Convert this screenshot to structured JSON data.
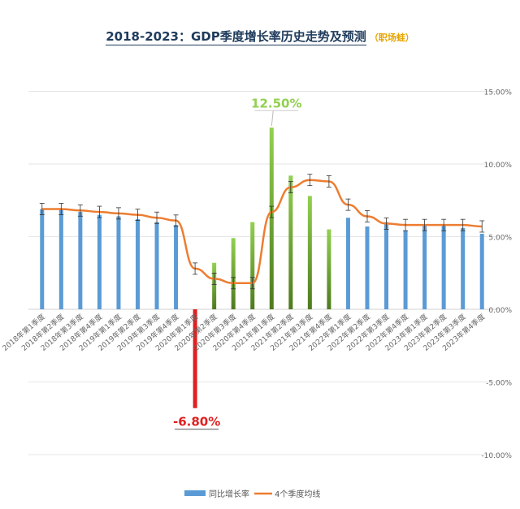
{
  "title": "2018-2023：GDP季度增长率历史走势及预测",
  "subtitle": "（职场蛙）",
  "colors": {
    "bar_blue": "#5b9bd5",
    "line_orange": "#ed7d31",
    "green_light": "#92d050",
    "green_dark": "#4e7a1e",
    "red": "#e02020",
    "axis_text": "#666666",
    "grid": "#e6e6e6",
    "title": "#1f3b5c",
    "subtitle": "#e5a400"
  },
  "chart_data": {
    "type": "bar",
    "categories": [
      "2018年第1季度",
      "2018年第2季度",
      "2018年第3季度",
      "2018年第4季度",
      "2019年第1季度",
      "2019年第2季度",
      "2019年第3季度",
      "2019年第4季度",
      "2020年第1季度",
      "2020年第2季度",
      "2020年第3季度",
      "2020年第4季度",
      "2021年第1季度",
      "2021年第2季度",
      "2021年第3季度",
      "2021年第4季度",
      "2022年第1季度",
      "2022年第2季度",
      "2022年第3季度",
      "2022年第4季度",
      "2023年第1季度",
      "2023年第2季度",
      "2023年第3季度",
      "2023年第4季度"
    ],
    "series": [
      {
        "name": "同比增长率",
        "type": "bar",
        "values": [
          6.9,
          6.9,
          6.7,
          6.5,
          6.4,
          6.2,
          6.0,
          5.8,
          -6.8,
          3.2,
          4.9,
          6.0,
          12.5,
          9.2,
          7.8,
          5.5,
          6.3,
          5.7,
          6.0,
          5.4,
          5.8,
          5.8,
          5.6,
          5.2
        ]
      },
      {
        "name": "4个季度均线",
        "type": "line",
        "values": [
          6.9,
          6.9,
          6.8,
          6.7,
          6.6,
          6.5,
          6.3,
          6.1,
          2.8,
          2.1,
          1.8,
          1.8,
          6.7,
          8.4,
          8.9,
          8.8,
          7.2,
          6.4,
          5.9,
          5.8,
          5.8,
          5.8,
          5.8,
          5.7
        ]
      }
    ],
    "y_axis": {
      "position": "right",
      "ylim": [
        -10,
        15
      ],
      "ticks": [
        "15.00%",
        "10.00%",
        "5.00%",
        "0.00%",
        "-5.00%",
        "-10.00%"
      ]
    },
    "annotations": [
      {
        "text": "12.50%",
        "index": 12,
        "color": "#92d050"
      },
      {
        "text": "-6.80%",
        "index": 8,
        "color": "#e02020"
      }
    ],
    "highlight": {
      "red_index": 8,
      "green_indices": [
        9,
        10,
        11,
        12,
        13,
        14,
        15
      ]
    },
    "grid": true,
    "error_bars_on_line": true,
    "legend_position": "bottom"
  }
}
